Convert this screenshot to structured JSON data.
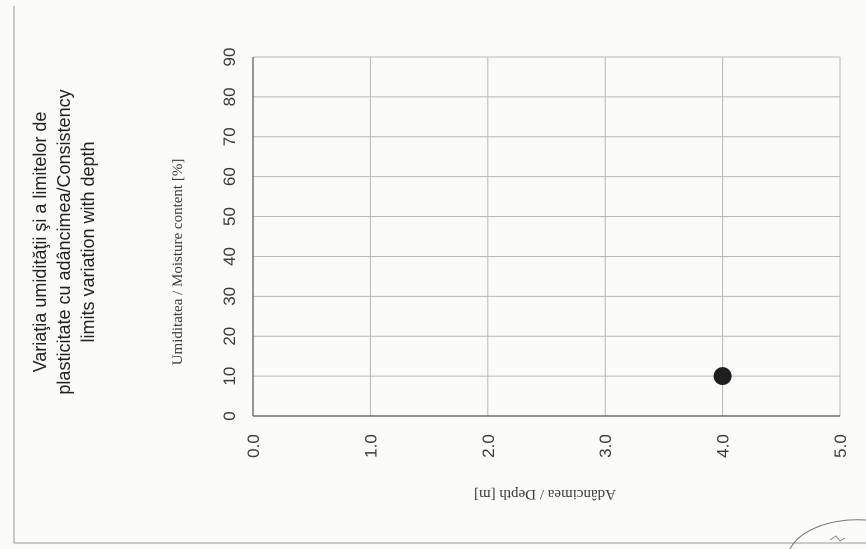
{
  "chart_data": {
    "type": "scatter",
    "title_lines": [
      "Variaţia umidităţii şi a limitelor de",
      "plasticitate cu adâncimea/Consistency",
      "limits variation with depth"
    ],
    "xlabel": "Adâncimea / Depth  [m]",
    "ylabel": "Umiditatea / Moisture content  [%]",
    "xlim": [
      0,
      5
    ],
    "ylim": [
      0,
      90
    ],
    "x_ticks": [
      "0.0",
      "1.0",
      "2.0",
      "3.0",
      "4.0",
      "5.0"
    ],
    "y_ticks": [
      "0",
      "10",
      "20",
      "30",
      "40",
      "50",
      "60",
      "70",
      "80",
      "90"
    ],
    "grid": true,
    "orientation": "rotated 90° clockwise (scanned page)",
    "series": [
      {
        "points": [
          {
            "x": 4.0,
            "y": 10
          }
        ],
        "marker": "filled-circle",
        "color": "#1f1f1f"
      }
    ]
  }
}
